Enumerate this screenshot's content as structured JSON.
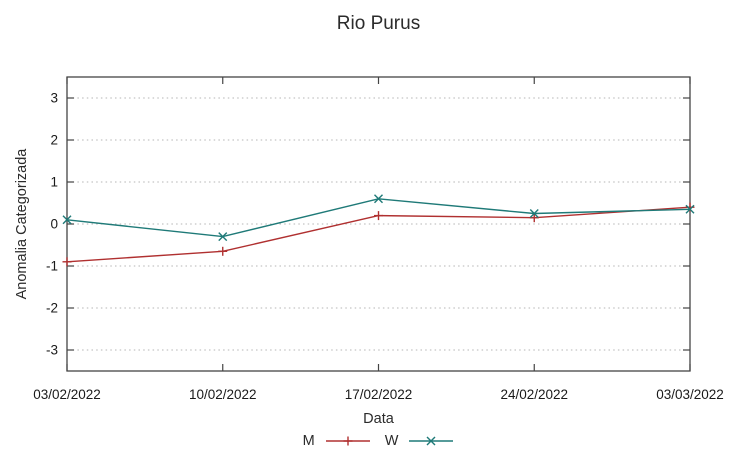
{
  "chart_data": {
    "type": "line",
    "title": "Rio Purus",
    "xlabel": "Data",
    "ylabel": "Anomalia Categorizada",
    "categories": [
      "03/02/2022",
      "10/02/2022",
      "17/02/2022",
      "24/02/2022",
      "03/03/2022"
    ],
    "series": [
      {
        "name": "M",
        "marker": "plus",
        "color": "#b03030",
        "values": [
          -0.9,
          -0.65,
          0.2,
          0.15,
          0.4
        ]
      },
      {
        "name": "W",
        "marker": "cross",
        "color": "#1f7a78",
        "values": [
          0.1,
          -0.3,
          0.6,
          0.25,
          0.35
        ]
      }
    ],
    "ylim": [
      -3.5,
      3.5
    ],
    "yticks": [
      -3,
      -2,
      -1,
      0,
      1,
      2,
      3
    ],
    "grid": "horizontal-dotted",
    "legend_position": "bottom-center",
    "grid_color": "#b4b4b4",
    "axis_color": "#444444",
    "tick_label_color": "#1a1a1a"
  }
}
